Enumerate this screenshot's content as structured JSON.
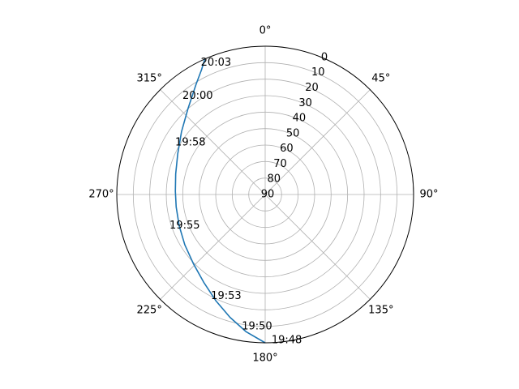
{
  "chart_data": {
    "type": "line",
    "projection": "polar",
    "theta_zero_location": "N",
    "theta_direction": "clockwise",
    "radial_axis": {
      "label_meaning": "elevation",
      "inverted": true,
      "range": [
        0,
        90
      ],
      "tick_values": [
        0,
        10,
        20,
        30,
        40,
        50,
        60,
        70,
        80,
        90
      ],
      "tick_labels": [
        "0",
        "10",
        "20",
        "30",
        "40",
        "50",
        "60",
        "70",
        "80",
        "90"
      ]
    },
    "angular_axis": {
      "tick_values": [
        0,
        45,
        90,
        135,
        180,
        225,
        270,
        315
      ],
      "tick_labels": [
        "0°",
        "45°",
        "90°",
        "135°",
        "180°",
        "225°",
        "270°",
        "315°"
      ]
    },
    "grid": true,
    "series": [
      {
        "color": "#1f77b4",
        "points": [
          {
            "azimuth": 180,
            "elevation": 0
          },
          {
            "azimuth": 188,
            "elevation": 6
          },
          {
            "azimuth": 196,
            "elevation": 12.5
          },
          {
            "azimuth": 205,
            "elevation": 19
          },
          {
            "azimuth": 215,
            "elevation": 25
          },
          {
            "azimuth": 226,
            "elevation": 29.5
          },
          {
            "azimuth": 238,
            "elevation": 32.5
          },
          {
            "azimuth": 250,
            "elevation": 34.5
          },
          {
            "azimuth": 262,
            "elevation": 35.5
          },
          {
            "azimuth": 272,
            "elevation": 35.5
          },
          {
            "azimuth": 283,
            "elevation": 34.3
          },
          {
            "azimuth": 295,
            "elevation": 31.5
          },
          {
            "azimuth": 307,
            "elevation": 26.5
          },
          {
            "azimuth": 318,
            "elevation": 20
          },
          {
            "azimuth": 328,
            "elevation": 11
          },
          {
            "azimuth": 333,
            "elevation": 5
          },
          {
            "azimuth": 336,
            "elevation": 0
          }
        ]
      }
    ],
    "annotations": [
      {
        "text": "19:48",
        "azimuth": 177.5,
        "elevation": 1.5
      },
      {
        "text": "19:50",
        "azimuth": 190,
        "elevation": 8.5
      },
      {
        "text": "19:53",
        "azimuth": 208,
        "elevation": 20
      },
      {
        "text": "19:55",
        "azimuth": 252,
        "elevation": 29
      },
      {
        "text": "19:58",
        "azimuth": 300,
        "elevation": 27
      },
      {
        "text": "20:00",
        "azimuth": 320,
        "elevation": 12
      },
      {
        "text": "20:03",
        "azimuth": 334,
        "elevation": 1
      }
    ]
  }
}
